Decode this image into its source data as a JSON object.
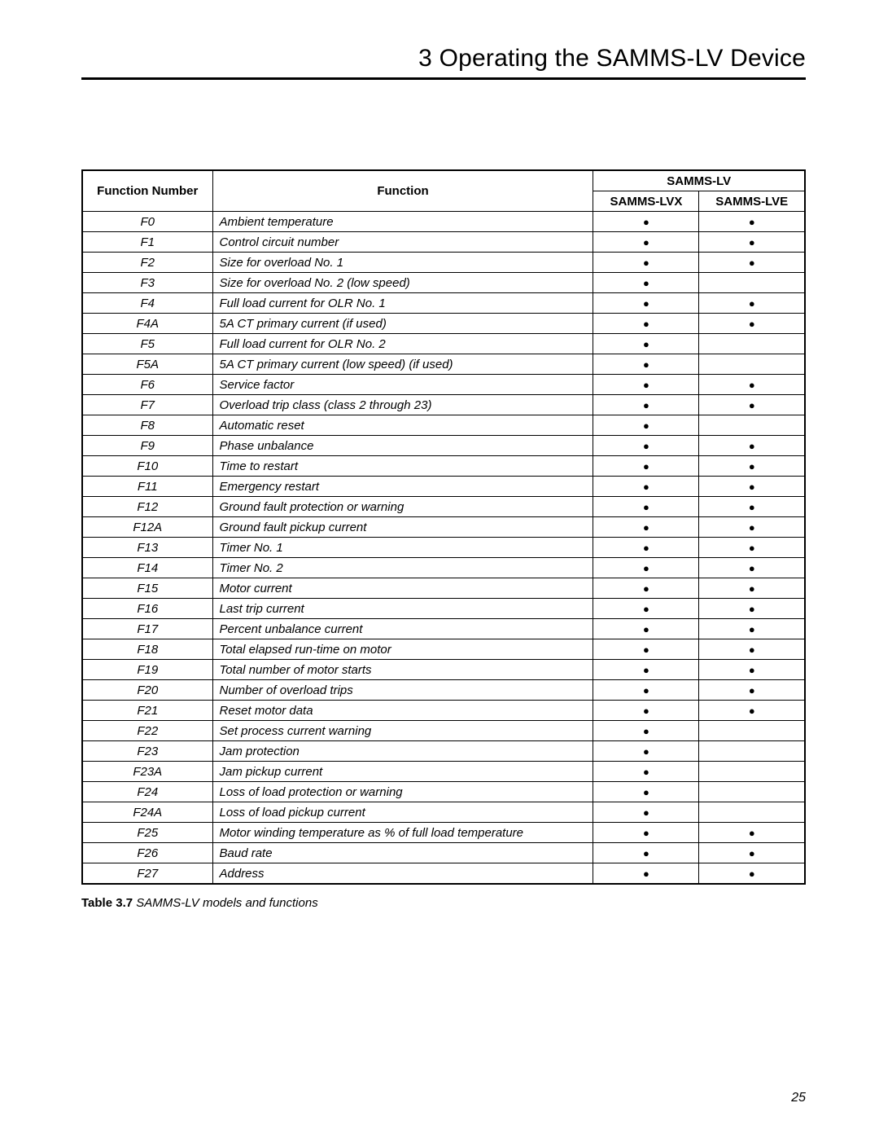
{
  "chapter_title": "3 Operating the SAMMS-LV Device",
  "table": {
    "group_header": "SAMMS-LV",
    "columns": [
      "Function Number",
      "Function",
      "SAMMS-LVX",
      "SAMMS-LVE"
    ],
    "dot_char": "●",
    "rows": [
      {
        "fn": "F0",
        "desc": "Ambient temperature",
        "lvx": true,
        "lve": true
      },
      {
        "fn": "F1",
        "desc": "Control circuit number",
        "lvx": true,
        "lve": true
      },
      {
        "fn": "F2",
        "desc": "Size for overload No. 1",
        "lvx": true,
        "lve": true
      },
      {
        "fn": "F3",
        "desc": "Size for overload No. 2 (low speed)",
        "lvx": true,
        "lve": false
      },
      {
        "fn": "F4",
        "desc": "Full load current for OLR No. 1",
        "lvx": true,
        "lve": true
      },
      {
        "fn": "F4A",
        "desc": "5A CT primary current (if used)",
        "lvx": true,
        "lve": true
      },
      {
        "fn": "F5",
        "desc": "Full load current for OLR No. 2",
        "lvx": true,
        "lve": false
      },
      {
        "fn": "F5A",
        "desc": "5A CT primary current (low speed) (if used)",
        "lvx": true,
        "lve": false
      },
      {
        "fn": "F6",
        "desc": "Service factor",
        "lvx": true,
        "lve": true
      },
      {
        "fn": "F7",
        "desc": "Overload trip class (class 2 through 23)",
        "lvx": true,
        "lve": true
      },
      {
        "fn": "F8",
        "desc": "Automatic reset",
        "lvx": true,
        "lve": false
      },
      {
        "fn": "F9",
        "desc": "Phase unbalance",
        "lvx": true,
        "lve": true
      },
      {
        "fn": "F10",
        "desc": "Time to restart",
        "lvx": true,
        "lve": true
      },
      {
        "fn": "F11",
        "desc": "Emergency restart",
        "lvx": true,
        "lve": true
      },
      {
        "fn": "F12",
        "desc": "Ground fault protection or warning",
        "lvx": true,
        "lve": true
      },
      {
        "fn": "F12A",
        "desc": "Ground fault pickup current",
        "lvx": true,
        "lve": true
      },
      {
        "fn": "F13",
        "desc": "Timer No. 1",
        "lvx": true,
        "lve": true
      },
      {
        "fn": "F14",
        "desc": "Timer No. 2",
        "lvx": true,
        "lve": true
      },
      {
        "fn": "F15",
        "desc": "Motor current",
        "lvx": true,
        "lve": true
      },
      {
        "fn": "F16",
        "desc": "Last trip current",
        "lvx": true,
        "lve": true
      },
      {
        "fn": "F17",
        "desc": "Percent unbalance current",
        "lvx": true,
        "lve": true
      },
      {
        "fn": "F18",
        "desc": "Total elapsed run-time on motor",
        "lvx": true,
        "lve": true
      },
      {
        "fn": "F19",
        "desc": "Total number of motor starts",
        "lvx": true,
        "lve": true
      },
      {
        "fn": "F20",
        "desc": "Number of overload trips",
        "lvx": true,
        "lve": true
      },
      {
        "fn": "F21",
        "desc": "Reset motor data",
        "lvx": true,
        "lve": true
      },
      {
        "fn": "F22",
        "desc": "Set process current warning",
        "lvx": true,
        "lve": false
      },
      {
        "fn": "F23",
        "desc": "Jam protection",
        "lvx": true,
        "lve": false
      },
      {
        "fn": "F23A",
        "desc": "Jam pickup current",
        "lvx": true,
        "lve": false
      },
      {
        "fn": "F24",
        "desc": "Loss of load protection or warning",
        "lvx": true,
        "lve": false
      },
      {
        "fn": "F24A",
        "desc": "Loss of load pickup current",
        "lvx": true,
        "lve": false
      },
      {
        "fn": "F25",
        "desc": "Motor winding temperature as % of full load temperature",
        "lvx": true,
        "lve": true
      },
      {
        "fn": "F26",
        "desc": "Baud rate",
        "lvx": true,
        "lve": true
      },
      {
        "fn": "F27",
        "desc": "Address",
        "lvx": true,
        "lve": true
      }
    ]
  },
  "caption": {
    "label": "Table 3.7",
    "text": " SAMMS-LV models and functions"
  },
  "page_number": "25"
}
